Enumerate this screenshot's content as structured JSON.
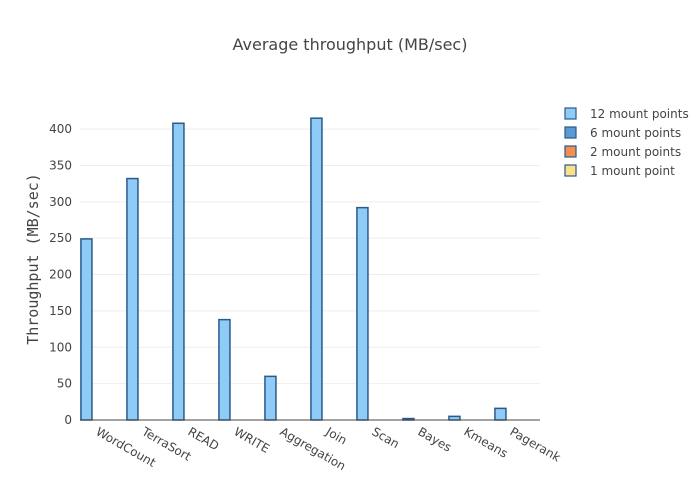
{
  "chart_data": {
    "type": "bar",
    "title": "Average throughput (MB/sec)",
    "xlabel": "",
    "ylabel": "Throughput (MB/sec)",
    "categories": [
      "WordCount",
      "TerraSort",
      "READ",
      "WRITE",
      "Aggregation",
      "Join",
      "Scan",
      "Bayes",
      "Kmeans",
      "Pagerank"
    ],
    "yticks": [
      0,
      50,
      100,
      150,
      200,
      250,
      300,
      350,
      400
    ],
    "ylim": [
      0,
      440
    ],
    "grid": true,
    "legend_position": "top-right",
    "series": [
      {
        "name": "12 mount points",
        "color": "#8fcbf7",
        "values": [
          249,
          332,
          408,
          138,
          60,
          415,
          292,
          2,
          5,
          16
        ]
      },
      {
        "name": "6 mount points",
        "color": "#5b9bd5",
        "values": [
          0,
          0,
          0,
          0,
          0,
          0,
          0,
          0,
          0,
          0
        ]
      },
      {
        "name": "2 mount points",
        "color": "#f28e4f",
        "values": [
          0,
          0,
          0,
          0,
          0,
          0,
          0,
          0,
          0,
          0
        ]
      },
      {
        "name": "1 mount point",
        "color": "#fbe08c",
        "values": [
          0,
          0,
          0,
          0,
          0,
          0,
          0,
          0,
          0,
          0
        ]
      }
    ],
    "bar_outline_color": "#2a5a8a"
  }
}
